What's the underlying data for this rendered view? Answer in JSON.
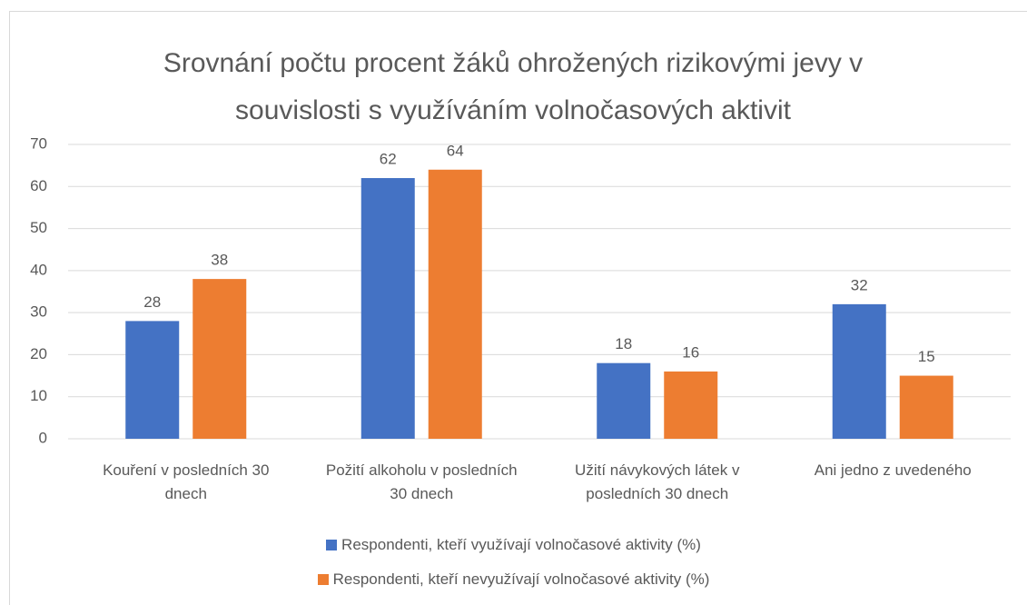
{
  "chart_data": {
    "type": "bar",
    "title": "Srovnání počtu procent žáků ohrožených rizikovými jevy v souvislosti s využíváním volnočasových aktivit",
    "categories": [
      "Kouření v posledních 30 dnech",
      "Požití alkoholu v posledních 30 dnech",
      "Užití návykových látek v posledních 30 dnech",
      "Ani jedno z uvedeného"
    ],
    "series": [
      {
        "name": "Respondenti, kteří využívají volnočasové aktivity (%)",
        "color": "#4472c4",
        "values": [
          28,
          62,
          18,
          32
        ]
      },
      {
        "name": "Respondenti, kteří nevyužívají volnočasové aktivity (%)",
        "color": "#ed7d31",
        "values": [
          38,
          64,
          16,
          15
        ]
      }
    ],
    "ylim": [
      0,
      70
    ],
    "yticks": [
      0,
      10,
      20,
      30,
      40,
      50,
      60,
      70
    ],
    "grid": true,
    "legend": "bottom"
  }
}
